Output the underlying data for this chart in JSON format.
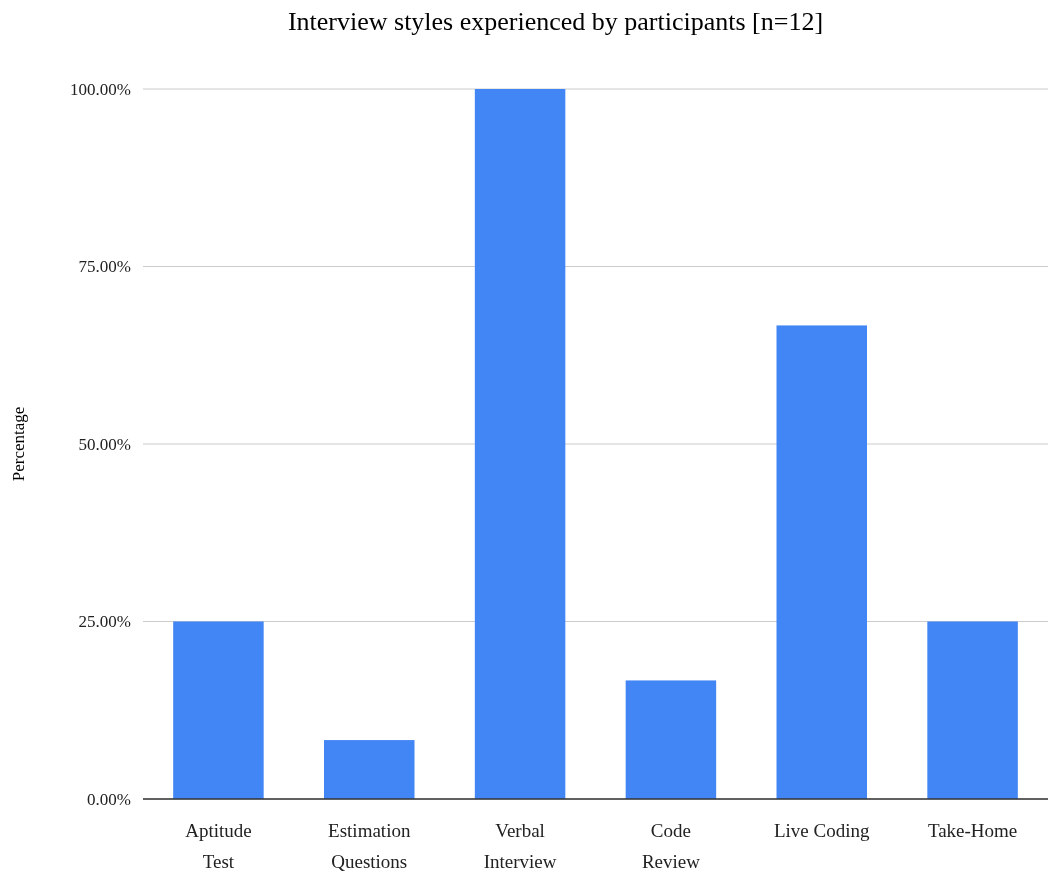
{
  "chart_data": {
    "type": "bar",
    "title": "Interview styles experienced by participants [n=12]",
    "ylabel": "Percentage",
    "categories": [
      "Aptitude\nTest",
      "Estimation\nQuestions",
      "Verbal\nInterview",
      "Code\nReview",
      "Live Coding",
      "Take-Home"
    ],
    "values": [
      25,
      8.3,
      100,
      16.7,
      66.7,
      25
    ],
    "color": "#4285f4",
    "ylim": [
      0,
      100
    ],
    "yticks": [
      {
        "value": 0,
        "label": "0.00%"
      },
      {
        "value": 25,
        "label": "25.00%"
      },
      {
        "value": 50,
        "label": "50.00%"
      },
      {
        "value": 75,
        "label": "75.00%"
      },
      {
        "value": 100,
        "label": "100.00%"
      }
    ],
    "grid": "y"
  }
}
